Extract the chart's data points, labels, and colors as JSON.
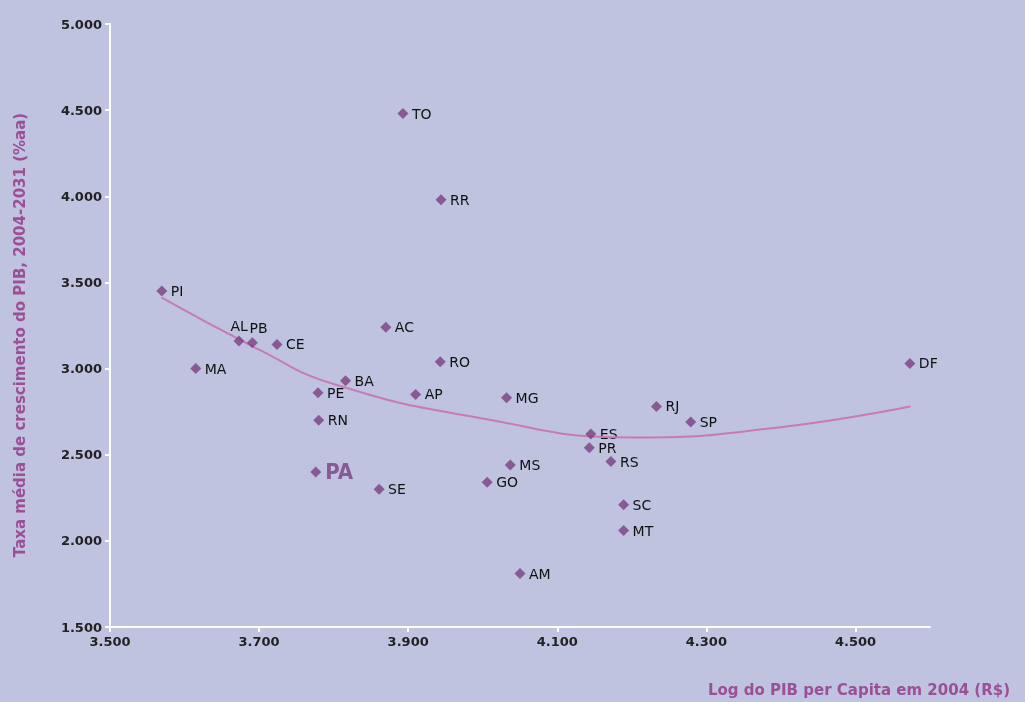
{
  "chart_data": {
    "type": "scatter",
    "xlabel": "Log do PIB per Capita em 2004 (R$)",
    "ylabel": "Taxa média de crescimento do PIB, 2004-2031 (%aa)",
    "x": [
      3.5695,
      3.615,
      3.673,
      3.691,
      3.724,
      3.779,
      3.78,
      3.816,
      3.861,
      3.87,
      3.893,
      3.91,
      3.944,
      3.943,
      4.006,
      4.037,
      4.032,
      4.05,
      4.145,
      4.143,
      4.172,
      4.189,
      4.189,
      4.233,
      4.279,
      4.573
    ],
    "series": [
      {
        "color": "#7b3f7f",
        "values": [
          3.45,
          3.0,
          3.16,
          3.15,
          3.14,
          2.86,
          2.7,
          2.93,
          2.3,
          3.24,
          4.48,
          2.85,
          3.98,
          3.04,
          2.34,
          2.44,
          2.83,
          1.81,
          2.62,
          2.54,
          2.46,
          2.21,
          2.06,
          2.78,
          2.69,
          3.03
        ]
      },
      {
        "name": "PA",
        "color": "#7b3f7f",
        "x": [
          3.776
        ],
        "values": [
          2.4
        ]
      },
      {
        "type": "line",
        "color": "#c77bb5",
        "marker": "none",
        "x": [
          3.57,
          3.7,
          3.8,
          4.0,
          4.2,
          4.4,
          4.573
        ],
        "values": [
          3.41,
          3.11,
          2.91,
          2.71,
          2.6,
          2.66,
          2.78
        ]
      }
    ],
    "annotations": [
      {
        "text": "PI",
        "x": 3.5695,
        "y": 3.45
      },
      {
        "text": "MA",
        "x": 3.615,
        "y": 3.0
      },
      {
        "text": "AL",
        "x": 3.673,
        "y": 3.16
      },
      {
        "text": "PB",
        "x": 3.691,
        "y": 3.15
      },
      {
        "text": "CE",
        "x": 3.724,
        "y": 3.14
      },
      {
        "text": "PE",
        "x": 3.779,
        "y": 2.86
      },
      {
        "text": "RN",
        "x": 3.78,
        "y": 2.7
      },
      {
        "text": "BA",
        "x": 3.816,
        "y": 2.93
      },
      {
        "text": "SE",
        "x": 3.861,
        "y": 2.3
      },
      {
        "text": "AC",
        "x": 3.87,
        "y": 3.24
      },
      {
        "text": "TO",
        "x": 3.893,
        "y": 4.48
      },
      {
        "text": "AP",
        "x": 3.91,
        "y": 2.85
      },
      {
        "text": "RR",
        "x": 3.944,
        "y": 3.98
      },
      {
        "text": "RO",
        "x": 3.943,
        "y": 3.04
      },
      {
        "text": "GO",
        "x": 4.006,
        "y": 2.34
      },
      {
        "text": "MS",
        "x": 4.037,
        "y": 2.44
      },
      {
        "text": "MG",
        "x": 4.032,
        "y": 2.83
      },
      {
        "text": "AM",
        "x": 4.05,
        "y": 1.81
      },
      {
        "text": "ES",
        "x": 4.145,
        "y": 2.62
      },
      {
        "text": "PR",
        "x": 4.143,
        "y": 2.54
      },
      {
        "text": "RS",
        "x": 4.172,
        "y": 2.46
      },
      {
        "text": "SC",
        "x": 4.189,
        "y": 2.21
      },
      {
        "text": "MT",
        "x": 4.189,
        "y": 2.06
      },
      {
        "text": "RJ",
        "x": 4.233,
        "y": 2.78
      },
      {
        "text": "SP",
        "x": 4.279,
        "y": 2.69
      },
      {
        "text": "DF",
        "x": 4.573,
        "y": 3.03
      }
    ],
    "marker": "diamond",
    "grid": false,
    "legend": false,
    "xlim": [
      3.5,
      4.6
    ],
    "xticks": [
      {
        "value": 3.5,
        "label": "3.500"
      },
      {
        "value": 3.7,
        "label": "3.700"
      },
      {
        "value": 3.9,
        "label": "3.900"
      },
      {
        "value": 4.1,
        "label": "4.100"
      },
      {
        "value": 4.3,
        "label": "4.300"
      },
      {
        "value": 4.5,
        "label": "4.500"
      }
    ],
    "ylim": [
      1.5,
      5.0
    ],
    "yticks": [
      {
        "value": 1.5,
        "label": "1.500"
      },
      {
        "value": 2.0,
        "label": "2.000"
      },
      {
        "value": 2.5,
        "label": "2.500"
      },
      {
        "value": 3.0,
        "label": "3.000"
      },
      {
        "value": 3.5,
        "label": "3.500"
      },
      {
        "value": 4.0,
        "label": "4.000"
      },
      {
        "value": 4.5,
        "label": "4.500"
      },
      {
        "value": 5.0,
        "label": "5.000"
      }
    ]
  }
}
